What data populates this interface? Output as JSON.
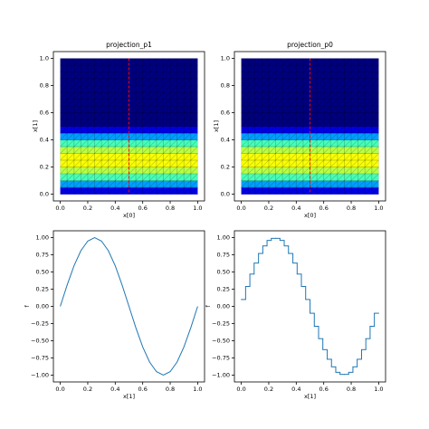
{
  "chart_data": [
    {
      "type": "heatmap",
      "title": "projection_p1",
      "xlabel": "x[0]",
      "ylabel": "x[1]",
      "cmap": "jet",
      "clim": [
        0,
        1.6
      ],
      "extent": [
        0,
        1,
        0,
        1
      ],
      "y": [
        0.025,
        0.075,
        0.125,
        0.175,
        0.225,
        0.275,
        0.325,
        0.375,
        0.425,
        0.475,
        0.525,
        0.575,
        0.625,
        0.675,
        0.725,
        0.775,
        0.825,
        0.875,
        0.925,
        0.975
      ],
      "values": [
        0.16,
        0.45,
        0.71,
        0.89,
        0.99,
        0.99,
        0.89,
        0.71,
        0.45,
        0.16,
        -0.16,
        -0.45,
        -0.71,
        -0.89,
        -0.99,
        -0.99,
        -0.89,
        -0.71,
        -0.45,
        -0.16
      ],
      "vline": 0.5,
      "vline_color": "#ff0000",
      "xlim": [
        -0.05,
        1.05
      ],
      "ylim": [
        -0.05,
        1.05
      ],
      "xticks": [
        {
          "value": 0,
          "label": "0.0"
        },
        {
          "value": 0.2,
          "label": "0.2"
        },
        {
          "value": 0.4,
          "label": "0.4"
        },
        {
          "value": 0.6,
          "label": "0.6"
        },
        {
          "value": 0.8,
          "label": "0.8"
        },
        {
          "value": 1,
          "label": "1.0"
        }
      ],
      "yticks": [
        {
          "value": 0,
          "label": "0.0"
        },
        {
          "value": 0.2,
          "label": "0.2"
        },
        {
          "value": 0.4,
          "label": "0.4"
        },
        {
          "value": 0.6,
          "label": "0.6"
        },
        {
          "value": 0.8,
          "label": "0.8"
        },
        {
          "value": 1,
          "label": "1.0"
        }
      ]
    },
    {
      "type": "heatmap",
      "title": "projection_p0",
      "xlabel": "x[0]",
      "ylabel": "x[1]",
      "cmap": "jet",
      "clim": [
        0,
        1.6
      ],
      "extent": [
        0,
        1,
        0,
        1
      ],
      "y": [
        0.025,
        0.075,
        0.125,
        0.175,
        0.225,
        0.275,
        0.325,
        0.375,
        0.425,
        0.475,
        0.525,
        0.575,
        0.625,
        0.675,
        0.725,
        0.775,
        0.825,
        0.875,
        0.925,
        0.975
      ],
      "values": [
        0.16,
        0.45,
        0.71,
        0.89,
        0.99,
        0.99,
        0.89,
        0.71,
        0.45,
        0.16,
        -0.16,
        -0.45,
        -0.71,
        -0.89,
        -0.99,
        -0.99,
        -0.89,
        -0.71,
        -0.45,
        -0.16
      ],
      "vline": 0.5,
      "vline_color": "#ff0000",
      "xlim": [
        -0.05,
        1.05
      ],
      "ylim": [
        -0.05,
        1.05
      ],
      "xticks": [
        {
          "value": 0,
          "label": "0.0"
        },
        {
          "value": 0.2,
          "label": "0.2"
        },
        {
          "value": 0.4,
          "label": "0.4"
        },
        {
          "value": 0.6,
          "label": "0.6"
        },
        {
          "value": 0.8,
          "label": "0.8"
        },
        {
          "value": 1,
          "label": "1.0"
        }
      ],
      "yticks": [
        {
          "value": 0,
          "label": "0.0"
        },
        {
          "value": 0.2,
          "label": "0.2"
        },
        {
          "value": 0.4,
          "label": "0.4"
        },
        {
          "value": 0.6,
          "label": "0.6"
        },
        {
          "value": 0.8,
          "label": "0.8"
        },
        {
          "value": 1,
          "label": "1.0"
        }
      ]
    },
    {
      "type": "line",
      "xlabel": "x[1]",
      "ylabel": "f",
      "color": "#1f77b4",
      "x": [
        0,
        0.05,
        0.1,
        0.15,
        0.2,
        0.25,
        0.3,
        0.35,
        0.4,
        0.45,
        0.5,
        0.55,
        0.6,
        0.65,
        0.7,
        0.75,
        0.8,
        0.85,
        0.9,
        0.95,
        1
      ],
      "values": [
        0,
        0.31,
        0.59,
        0.81,
        0.95,
        1,
        0.95,
        0.81,
        0.59,
        0.31,
        0,
        -0.31,
        -0.59,
        -0.81,
        -0.95,
        -1,
        -0.95,
        -0.81,
        -0.59,
        -0.31,
        0
      ],
      "xlim": [
        -0.05,
        1.05
      ],
      "ylim": [
        -1.1,
        1.1
      ],
      "xticks": [
        {
          "value": 0,
          "label": "0.0"
        },
        {
          "value": 0.2,
          "label": "0.2"
        },
        {
          "value": 0.4,
          "label": "0.4"
        },
        {
          "value": 0.6,
          "label": "0.6"
        },
        {
          "value": 0.8,
          "label": "0.8"
        },
        {
          "value": 1,
          "label": "1.0"
        }
      ],
      "yticks": [
        {
          "value": -1,
          "label": "−1.00"
        },
        {
          "value": -0.75,
          "label": "−0.75"
        },
        {
          "value": -0.5,
          "label": "−0.50"
        },
        {
          "value": -0.25,
          "label": "−0.25"
        },
        {
          "value": 0,
          "label": "0.00"
        },
        {
          "value": 0.25,
          "label": "0.25"
        },
        {
          "value": 0.5,
          "label": "0.50"
        },
        {
          "value": 0.75,
          "label": "0.75"
        },
        {
          "value": 1,
          "label": "1.00"
        }
      ]
    },
    {
      "type": "step",
      "xlabel": "x[1]",
      "ylabel": "f",
      "color": "#1f77b4",
      "x": [
        0.016,
        0.047,
        0.078,
        0.109,
        0.141,
        0.172,
        0.203,
        0.234,
        0.266,
        0.297,
        0.328,
        0.359,
        0.391,
        0.422,
        0.453,
        0.484,
        0.516,
        0.547,
        0.578,
        0.609,
        0.641,
        0.672,
        0.703,
        0.734,
        0.766,
        0.797,
        0.828,
        0.859,
        0.891,
        0.922,
        0.953,
        0.984
      ],
      "values": [
        0.1,
        0.29,
        0.47,
        0.63,
        0.77,
        0.88,
        0.96,
        0.99,
        0.99,
        0.96,
        0.88,
        0.77,
        0.63,
        0.47,
        0.29,
        0.1,
        -0.1,
        -0.29,
        -0.47,
        -0.63,
        -0.77,
        -0.88,
        -0.96,
        -0.99,
        -0.99,
        -0.96,
        -0.88,
        -0.77,
        -0.63,
        -0.47,
        -0.29,
        -0.1
      ],
      "xlim": [
        -0.05,
        1.05
      ],
      "ylim": [
        -1.1,
        1.1
      ],
      "xticks": [
        {
          "value": 0,
          "label": "0.0"
        },
        {
          "value": 0.2,
          "label": "0.2"
        },
        {
          "value": 0.4,
          "label": "0.4"
        },
        {
          "value": 0.6,
          "label": "0.6"
        },
        {
          "value": 0.8,
          "label": "0.8"
        },
        {
          "value": 1,
          "label": "1.0"
        }
      ],
      "yticks": [
        {
          "value": -1,
          "label": "−1.00"
        },
        {
          "value": -0.75,
          "label": "−0.75"
        },
        {
          "value": -0.5,
          "label": "−0.50"
        },
        {
          "value": -0.25,
          "label": "−0.25"
        },
        {
          "value": 0,
          "label": "0.00"
        },
        {
          "value": 0.25,
          "label": "0.25"
        },
        {
          "value": 0.5,
          "label": "0.50"
        },
        {
          "value": 0.75,
          "label": "0.75"
        },
        {
          "value": 1,
          "label": "1.00"
        }
      ]
    }
  ]
}
